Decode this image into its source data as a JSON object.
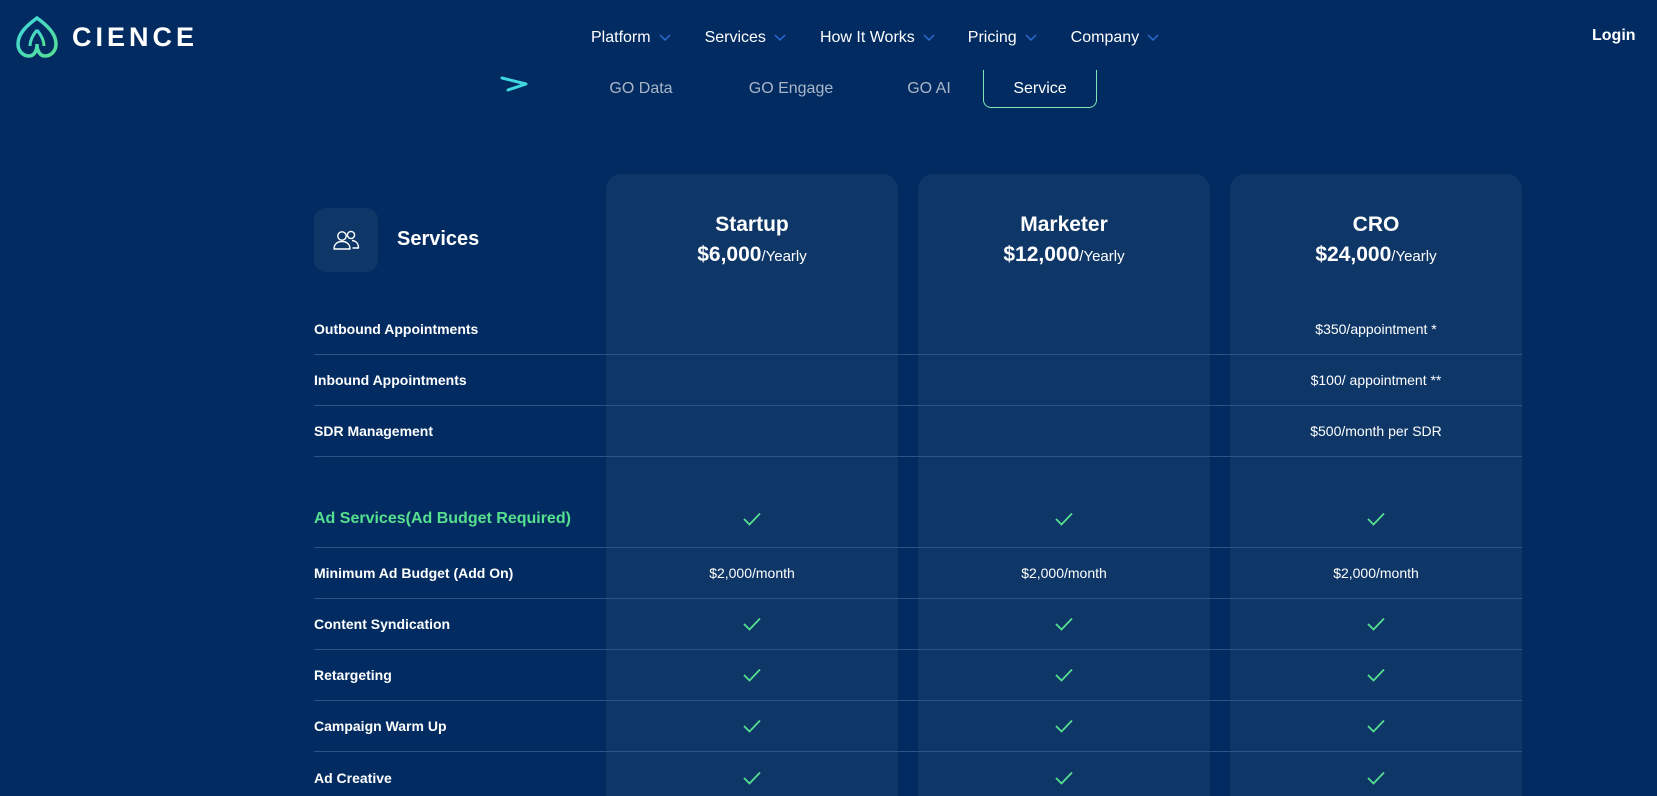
{
  "brand": {
    "name": "CIENCE"
  },
  "nav": {
    "items": [
      {
        "label": "Platform"
      },
      {
        "label": "Services"
      },
      {
        "label": "How It Works"
      },
      {
        "label": "Pricing"
      },
      {
        "label": "Company"
      }
    ],
    "login": "Login"
  },
  "tabs": [
    {
      "label": "GO Data"
    },
    {
      "label": "GO Engage"
    },
    {
      "label": "GO AI"
    },
    {
      "label": "Service",
      "active": true
    }
  ],
  "section": {
    "title": "Services",
    "icon": "users-icon"
  },
  "plans": [
    {
      "name": "Startup",
      "price": "$6,000",
      "period": "/Yearly"
    },
    {
      "name": "Marketer",
      "price": "$12,000",
      "period": "/Yearly"
    },
    {
      "name": "CRO",
      "price": "$24,000",
      "period": "/Yearly"
    }
  ],
  "rows": [
    {
      "label": "Outbound Appointments",
      "cells": [
        "",
        "",
        "$350/appointment *"
      ]
    },
    {
      "label": "Inbound Appointments",
      "cells": [
        "",
        "",
        "$100/ appointment **"
      ]
    },
    {
      "label": "SDR Management",
      "cells": [
        "",
        "",
        "$500/month per SDR"
      ]
    },
    {
      "label": "Ad Services(Ad Budget Required)",
      "accent": true,
      "cells": [
        "check",
        "check",
        "check"
      ]
    },
    {
      "label": "Minimum Ad Budget (Add On)",
      "cells": [
        "$2,000/month",
        "$2,000/month",
        "$2,000/month"
      ]
    },
    {
      "label": "Content Syndication",
      "cells": [
        "check",
        "check",
        "check"
      ]
    },
    {
      "label": "Retargeting",
      "cells": [
        "check",
        "check",
        "check"
      ]
    },
    {
      "label": "Campaign Warm Up",
      "cells": [
        "check",
        "check",
        "check"
      ]
    },
    {
      "label": "Ad Creative",
      "cells": [
        "check",
        "check",
        "check"
      ]
    }
  ],
  "colors": {
    "background": "#022c61",
    "column": "#0e3768",
    "accent_green": "#55e08f",
    "accent_cyan": "#3fd7e0"
  }
}
